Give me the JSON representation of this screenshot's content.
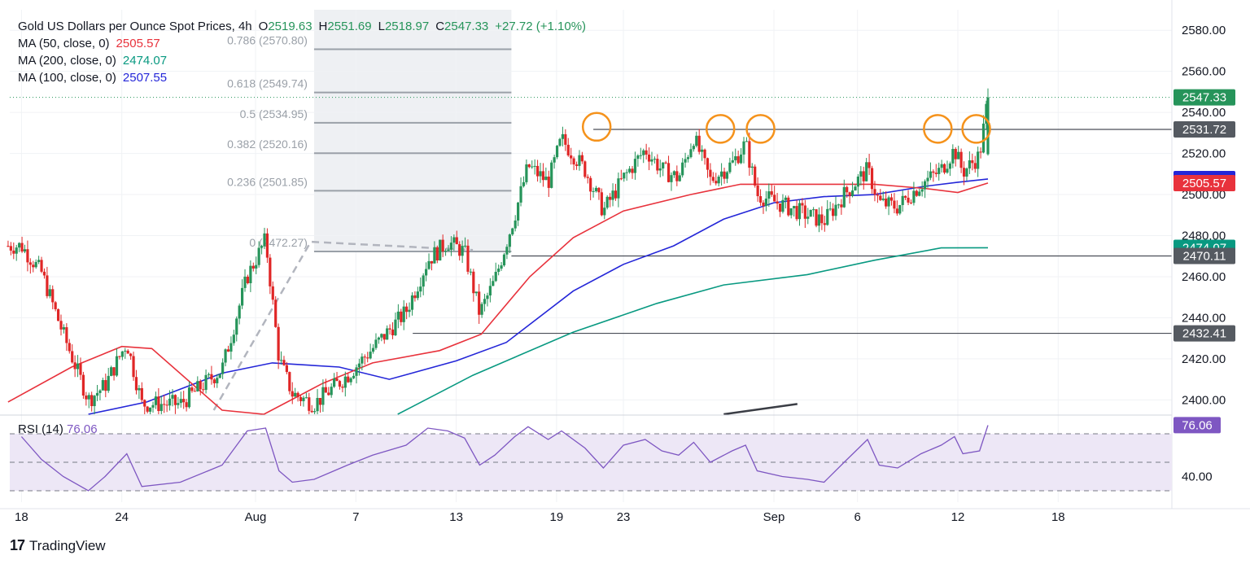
{
  "header": {
    "symbol": "Gold US Dollars per Ounce Spot Prices, 4h",
    "open_label": "O",
    "open": "2519.63",
    "high_label": "H",
    "high": "2551.69",
    "low_label": "L",
    "low": "2518.97",
    "close_label": "C",
    "close": "2547.33",
    "change": "+27.72 (+1.10%)"
  },
  "indicators": [
    {
      "label": "MA (50, close, 0)",
      "value": "2505.57",
      "color": "#e8323c"
    },
    {
      "label": "MA (200, close, 0)",
      "value": "2474.07",
      "color": "#089981"
    },
    {
      "label": "MA (100, close, 0)",
      "value": "2507.55",
      "color": "#2426d8"
    }
  ],
  "rsi_label": "RSI (14)",
  "rsi_value": "76.06",
  "brand": "TradingView",
  "colors": {
    "up": "#26945a",
    "down": "#e02626",
    "ma50": "#e8323c",
    "ma100": "#2426d8",
    "ma200": "#089981",
    "rsi": "#7e57c2",
    "circle": "#f5921b"
  },
  "chart_data": {
    "type": "candlestick",
    "title": "Gold US Dollars per Ounce Spot Prices, 4h",
    "ylim": [
      2393,
      2590
    ],
    "y_ticks": [
      "2580.00",
      "2560.00",
      "2540.00",
      "2520.00",
      "2500.00",
      "2480.00",
      "2460.00",
      "2440.00",
      "2420.00",
      "2400.00"
    ],
    "x_ticks": [
      "18",
      "24",
      "Aug",
      "7",
      "13",
      "19",
      "23",
      "Sep",
      "6",
      "12",
      "18"
    ],
    "x_tick_days": [
      0,
      6,
      14,
      20,
      26,
      32,
      36,
      45,
      50,
      56,
      62
    ],
    "x_range_days": [
      -0.7,
      68.8
    ],
    "candle_range_days": [
      -0.8,
      57.8
    ],
    "price_path": [
      [
        0,
        2475
      ],
      [
        1.2,
        2462
      ],
      [
        2.5,
        2432
      ],
      [
        4,
        2400
      ],
      [
        5,
        2407
      ],
      [
        6.3,
        2428
      ],
      [
        7.2,
        2398
      ],
      [
        9.5,
        2398
      ],
      [
        12,
        2415
      ],
      [
        13.5,
        2460
      ],
      [
        14.6,
        2478
      ],
      [
        15.4,
        2420
      ],
      [
        16.2,
        2403
      ],
      [
        17.5,
        2398
      ],
      [
        19.5,
        2412
      ],
      [
        21,
        2425
      ],
      [
        23,
        2443
      ],
      [
        24.3,
        2468
      ],
      [
        25.5,
        2477
      ],
      [
        26.5,
        2472
      ],
      [
        27.4,
        2442
      ],
      [
        28.3,
        2458
      ],
      [
        29.5,
        2490
      ],
      [
        30.3,
        2514
      ],
      [
        31.5,
        2506
      ],
      [
        32.3,
        2527
      ],
      [
        33.7,
        2512
      ],
      [
        34.8,
        2492
      ],
      [
        36,
        2508
      ],
      [
        37.3,
        2522
      ],
      [
        38.3,
        2512
      ],
      [
        39.3,
        2508
      ],
      [
        40.2,
        2528
      ],
      [
        41.2,
        2507
      ],
      [
        42.5,
        2515
      ],
      [
        43.3,
        2525
      ],
      [
        44,
        2500
      ],
      [
        45.5,
        2495
      ],
      [
        47,
        2490
      ],
      [
        48,
        2487
      ],
      [
        49.2,
        2500
      ],
      [
        50.6,
        2512
      ],
      [
        51.3,
        2496
      ],
      [
        52.4,
        2494
      ],
      [
        53.8,
        2505
      ],
      [
        55,
        2512
      ],
      [
        55.8,
        2522
      ],
      [
        56.3,
        2511
      ],
      [
        57.3,
        2519
      ],
      [
        57.8,
        2547
      ]
    ],
    "ma50": [
      [
        -0.8,
        2399
      ],
      [
        3,
        2416
      ],
      [
        6,
        2426
      ],
      [
        7.8,
        2425
      ],
      [
        12,
        2395
      ],
      [
        14.5,
        2393
      ],
      [
        18,
        2408
      ],
      [
        21,
        2418
      ],
      [
        25,
        2424
      ],
      [
        27.5,
        2432
      ],
      [
        30.4,
        2460
      ],
      [
        33,
        2479
      ],
      [
        36,
        2492
      ],
      [
        40,
        2500
      ],
      [
        43,
        2505
      ],
      [
        47,
        2505
      ],
      [
        51,
        2505
      ],
      [
        54,
        2503
      ],
      [
        56,
        2501
      ],
      [
        57.8,
        2505.6
      ]
    ],
    "ma100": [
      [
        4,
        2393
      ],
      [
        7.5,
        2399
      ],
      [
        12,
        2413
      ],
      [
        15,
        2418
      ],
      [
        19,
        2416
      ],
      [
        22,
        2410
      ],
      [
        26,
        2419
      ],
      [
        29,
        2428
      ],
      [
        33,
        2453
      ],
      [
        36,
        2466
      ],
      [
        39,
        2475
      ],
      [
        42,
        2488
      ],
      [
        45,
        2496
      ],
      [
        48,
        2499
      ],
      [
        51,
        2500
      ],
      [
        54,
        2504
      ],
      [
        56,
        2506
      ],
      [
        57.8,
        2507.6
      ]
    ],
    "ma200": [
      [
        22.5,
        2393
      ],
      [
        27,
        2412
      ],
      [
        33,
        2433
      ],
      [
        38,
        2447
      ],
      [
        42,
        2456
      ],
      [
        47,
        2461
      ],
      [
        51,
        2468
      ],
      [
        55,
        2474
      ],
      [
        57.8,
        2474.1
      ]
    ],
    "rsi": {
      "ylim": [
        22,
        82
      ],
      "ref_levels": [
        70,
        50,
        30
      ],
      "tick": "40.00",
      "path": [
        [
          0,
          68
        ],
        [
          1.2,
          52
        ],
        [
          2.5,
          40
        ],
        [
          4,
          30
        ],
        [
          5,
          40
        ],
        [
          6.3,
          56
        ],
        [
          7.2,
          33
        ],
        [
          9.5,
          36
        ],
        [
          12,
          48
        ],
        [
          13.5,
          72
        ],
        [
          14.6,
          74
        ],
        [
          15.4,
          44
        ],
        [
          16.2,
          36
        ],
        [
          17.5,
          38
        ],
        [
          19.5,
          48
        ],
        [
          21,
          55
        ],
        [
          23,
          62
        ],
        [
          24.3,
          74
        ],
        [
          25.5,
          72
        ],
        [
          26.5,
          67
        ],
        [
          27.4,
          48
        ],
        [
          28.3,
          55
        ],
        [
          29.5,
          68
        ],
        [
          30.3,
          75
        ],
        [
          31.5,
          66
        ],
        [
          32.3,
          72
        ],
        [
          33.7,
          60
        ],
        [
          34.8,
          46
        ],
        [
          36,
          62
        ],
        [
          37.3,
          66
        ],
        [
          38.3,
          58
        ],
        [
          39.3,
          55
        ],
        [
          40.2,
          64
        ],
        [
          41.2,
          50
        ],
        [
          42.5,
          58
        ],
        [
          43.3,
          62
        ],
        [
          44,
          44
        ],
        [
          45.5,
          40
        ],
        [
          47,
          38
        ],
        [
          48,
          36
        ],
        [
          49.2,
          50
        ],
        [
          50.6,
          66
        ],
        [
          51.3,
          48
        ],
        [
          52.4,
          46
        ],
        [
          53.8,
          56
        ],
        [
          55,
          62
        ],
        [
          55.8,
          68
        ],
        [
          56.3,
          56
        ],
        [
          57.3,
          58
        ],
        [
          57.8,
          76
        ]
      ]
    },
    "price_labels": [
      {
        "text": "2547.33",
        "value": 2547.33,
        "color": "#26945a"
      },
      {
        "text": "2531.72",
        "value": 2531.72,
        "color": "#555a61"
      },
      {
        "text": "2507.55",
        "value": 2507.55,
        "color": "#2426d8"
      },
      {
        "text": "2505.57",
        "value": 2505.57,
        "color": "#e8323c"
      },
      {
        "text": "2474.07",
        "value": 2474.07,
        "color": "#089981"
      },
      {
        "text": "2470.11",
        "value": 2470.11,
        "color": "#555a61"
      },
      {
        "text": "2432.41",
        "value": 2432.41,
        "color": "#555a61"
      }
    ],
    "rsi_label_color": "#7e57c2",
    "hlines": [
      {
        "value": 2531.72,
        "from_day": 34.2,
        "to_day": 68.8
      },
      {
        "value": 2470.11,
        "from_day": 29.3,
        "to_day": 68.8
      },
      {
        "value": 2432.41,
        "from_day": 23.4,
        "to_day": 68.8
      }
    ],
    "current_price": 2547.33,
    "fibonacci": {
      "from_day": 17.5,
      "to_day": 29.3,
      "levels": [
        {
          "text": "0.786 (2570.80)",
          "value": 2570.8
        },
        {
          "text": "0.618 (2549.74)",
          "value": 2549.74
        },
        {
          "text": "0.5 (2534.95)",
          "value": 2534.95
        },
        {
          "text": "0.382 (2520.16)",
          "value": 2520.16
        },
        {
          "text": "0.236 (2501.85)",
          "value": 2501.85
        },
        {
          "text": "0 (2472.27)",
          "value": 2472.27
        }
      ]
    },
    "trend_dashed": [
      [
        11.5,
        2395
      ],
      [
        17.3,
        2477
      ],
      [
        27,
        2473
      ]
    ],
    "trend_solid": [
      [
        42,
        2393
      ],
      [
        46.4,
        2398
      ]
    ],
    "circles": [
      {
        "day": 34.4,
        "value": 2533
      },
      {
        "day": 41.8,
        "value": 2532
      },
      {
        "day": 44.2,
        "value": 2532
      },
      {
        "day": 54.8,
        "value": 2532
      },
      {
        "day": 57.1,
        "value": 2532
      }
    ]
  }
}
